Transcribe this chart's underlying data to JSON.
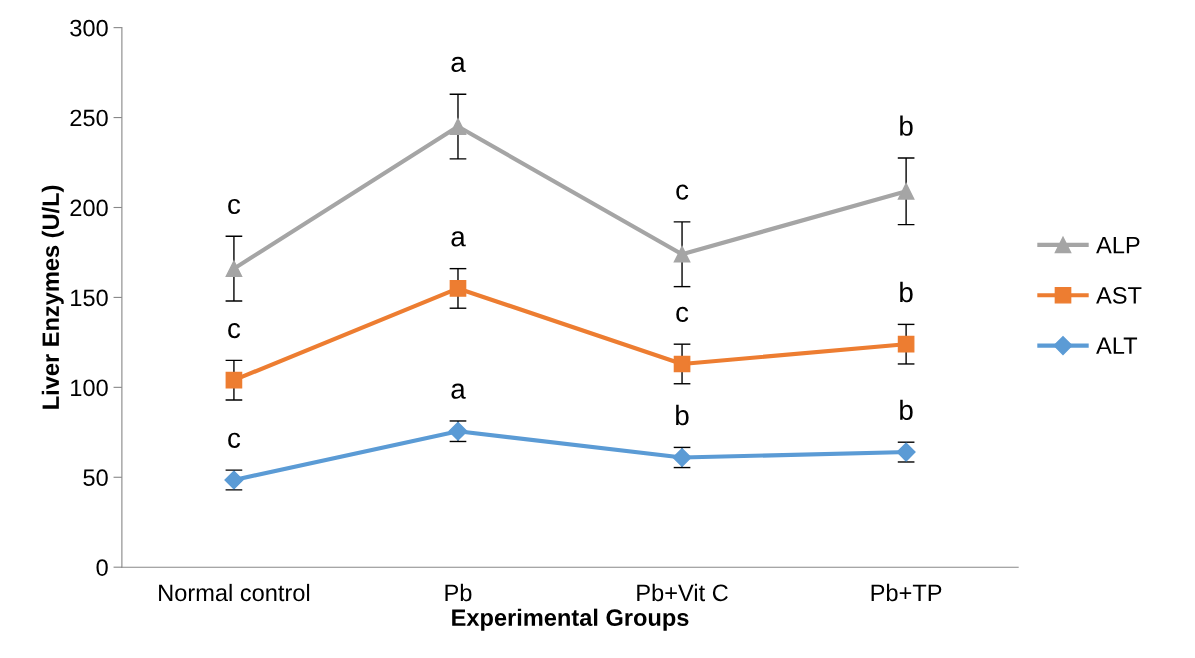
{
  "chart_data": {
    "type": "line",
    "xlabel": "Experimental Groups",
    "ylabel": "Liver Enzymes (U/L)",
    "categories": [
      "Normal control",
      "Pb",
      "Pb+Vit C",
      "Pb+TP"
    ],
    "series": [
      {
        "name": "ALP",
        "color": "#a5a5a5",
        "marker": "triangle",
        "values": [
          166,
          245,
          174,
          209
        ],
        "errors": [
          18,
          18,
          18,
          18.5
        ]
      },
      {
        "name": "AST",
        "color": "#ed7d31",
        "marker": "square",
        "values": [
          104,
          155,
          113,
          124
        ],
        "errors": [
          11,
          11,
          11,
          11
        ]
      },
      {
        "name": "ALT",
        "color": "#5b9bd5",
        "marker": "diamond",
        "values": [
          48.5,
          75.6,
          61,
          64
        ],
        "errors": [
          5.5,
          5.7,
          5.6,
          5.5
        ]
      }
    ],
    "ylim": [
      0,
      300
    ],
    "yticks": [
      0,
      50,
      100,
      150,
      200,
      250,
      300
    ],
    "grid": false,
    "legend": "right",
    "annotations": [
      "c",
      "a",
      "c",
      "b",
      "c",
      "a",
      "c",
      "b",
      "c",
      "a",
      "b",
      "b"
    ]
  }
}
